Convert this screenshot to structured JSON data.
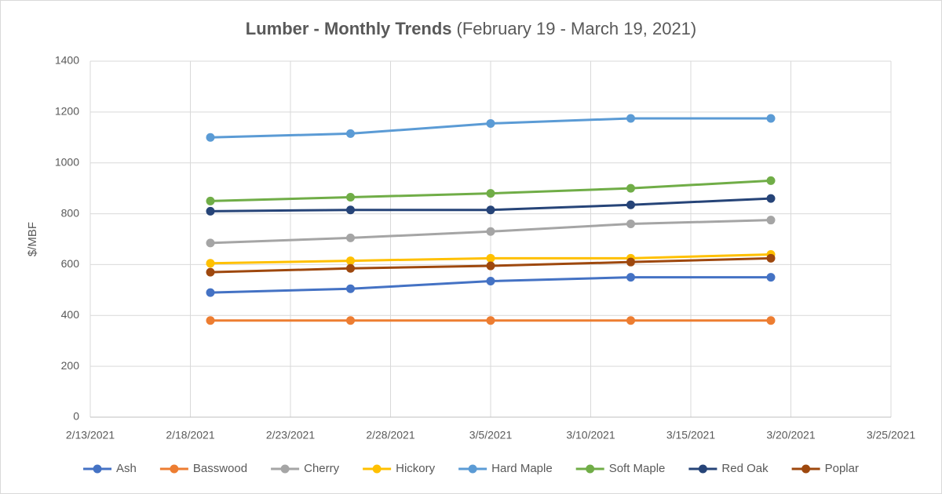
{
  "chart_data": {
    "type": "line",
    "title": "Lumber - Monthly Trends",
    "subtitle": "(February 19 - March 19, 2021)",
    "y_label": "$/MBF",
    "x": [
      "2/19/2021",
      "2/26/2021",
      "3/5/2021",
      "3/12/2021",
      "3/19/2021"
    ],
    "xlim": [
      "2/13/2021",
      "3/25/2021"
    ],
    "xticks": [
      "2/13/2021",
      "2/18/2021",
      "2/23/2021",
      "2/28/2021",
      "3/5/2021",
      "3/10/2021",
      "3/15/2021",
      "3/20/2021",
      "3/25/2021"
    ],
    "ylim": [
      0,
      1400
    ],
    "yticks": [
      0,
      200,
      400,
      600,
      800,
      1000,
      1200,
      1400
    ],
    "grid": true,
    "legend": "bottom",
    "series": [
      {
        "name": "Ash",
        "color": "#4472c4",
        "values": [
          490,
          505,
          535,
          550,
          550
        ]
      },
      {
        "name": "Basswood",
        "color": "#ed7d31",
        "values": [
          380,
          380,
          380,
          380,
          380
        ]
      },
      {
        "name": "Cherry",
        "color": "#a5a5a5",
        "values": [
          685,
          705,
          730,
          760,
          775
        ]
      },
      {
        "name": "Hickory",
        "color": "#ffc000",
        "values": [
          605,
          615,
          625,
          625,
          640
        ]
      },
      {
        "name": "Hard Maple",
        "color": "#5b9bd5",
        "values": [
          1100,
          1115,
          1155,
          1175,
          1175
        ]
      },
      {
        "name": "Soft Maple",
        "color": "#70ad47",
        "values": [
          850,
          865,
          880,
          900,
          930
        ]
      },
      {
        "name": "Red Oak",
        "color": "#264478",
        "values": [
          810,
          815,
          815,
          835,
          860
        ]
      },
      {
        "name": "Poplar",
        "color": "#9e480e",
        "values": [
          570,
          585,
          595,
          610,
          625
        ]
      }
    ]
  }
}
